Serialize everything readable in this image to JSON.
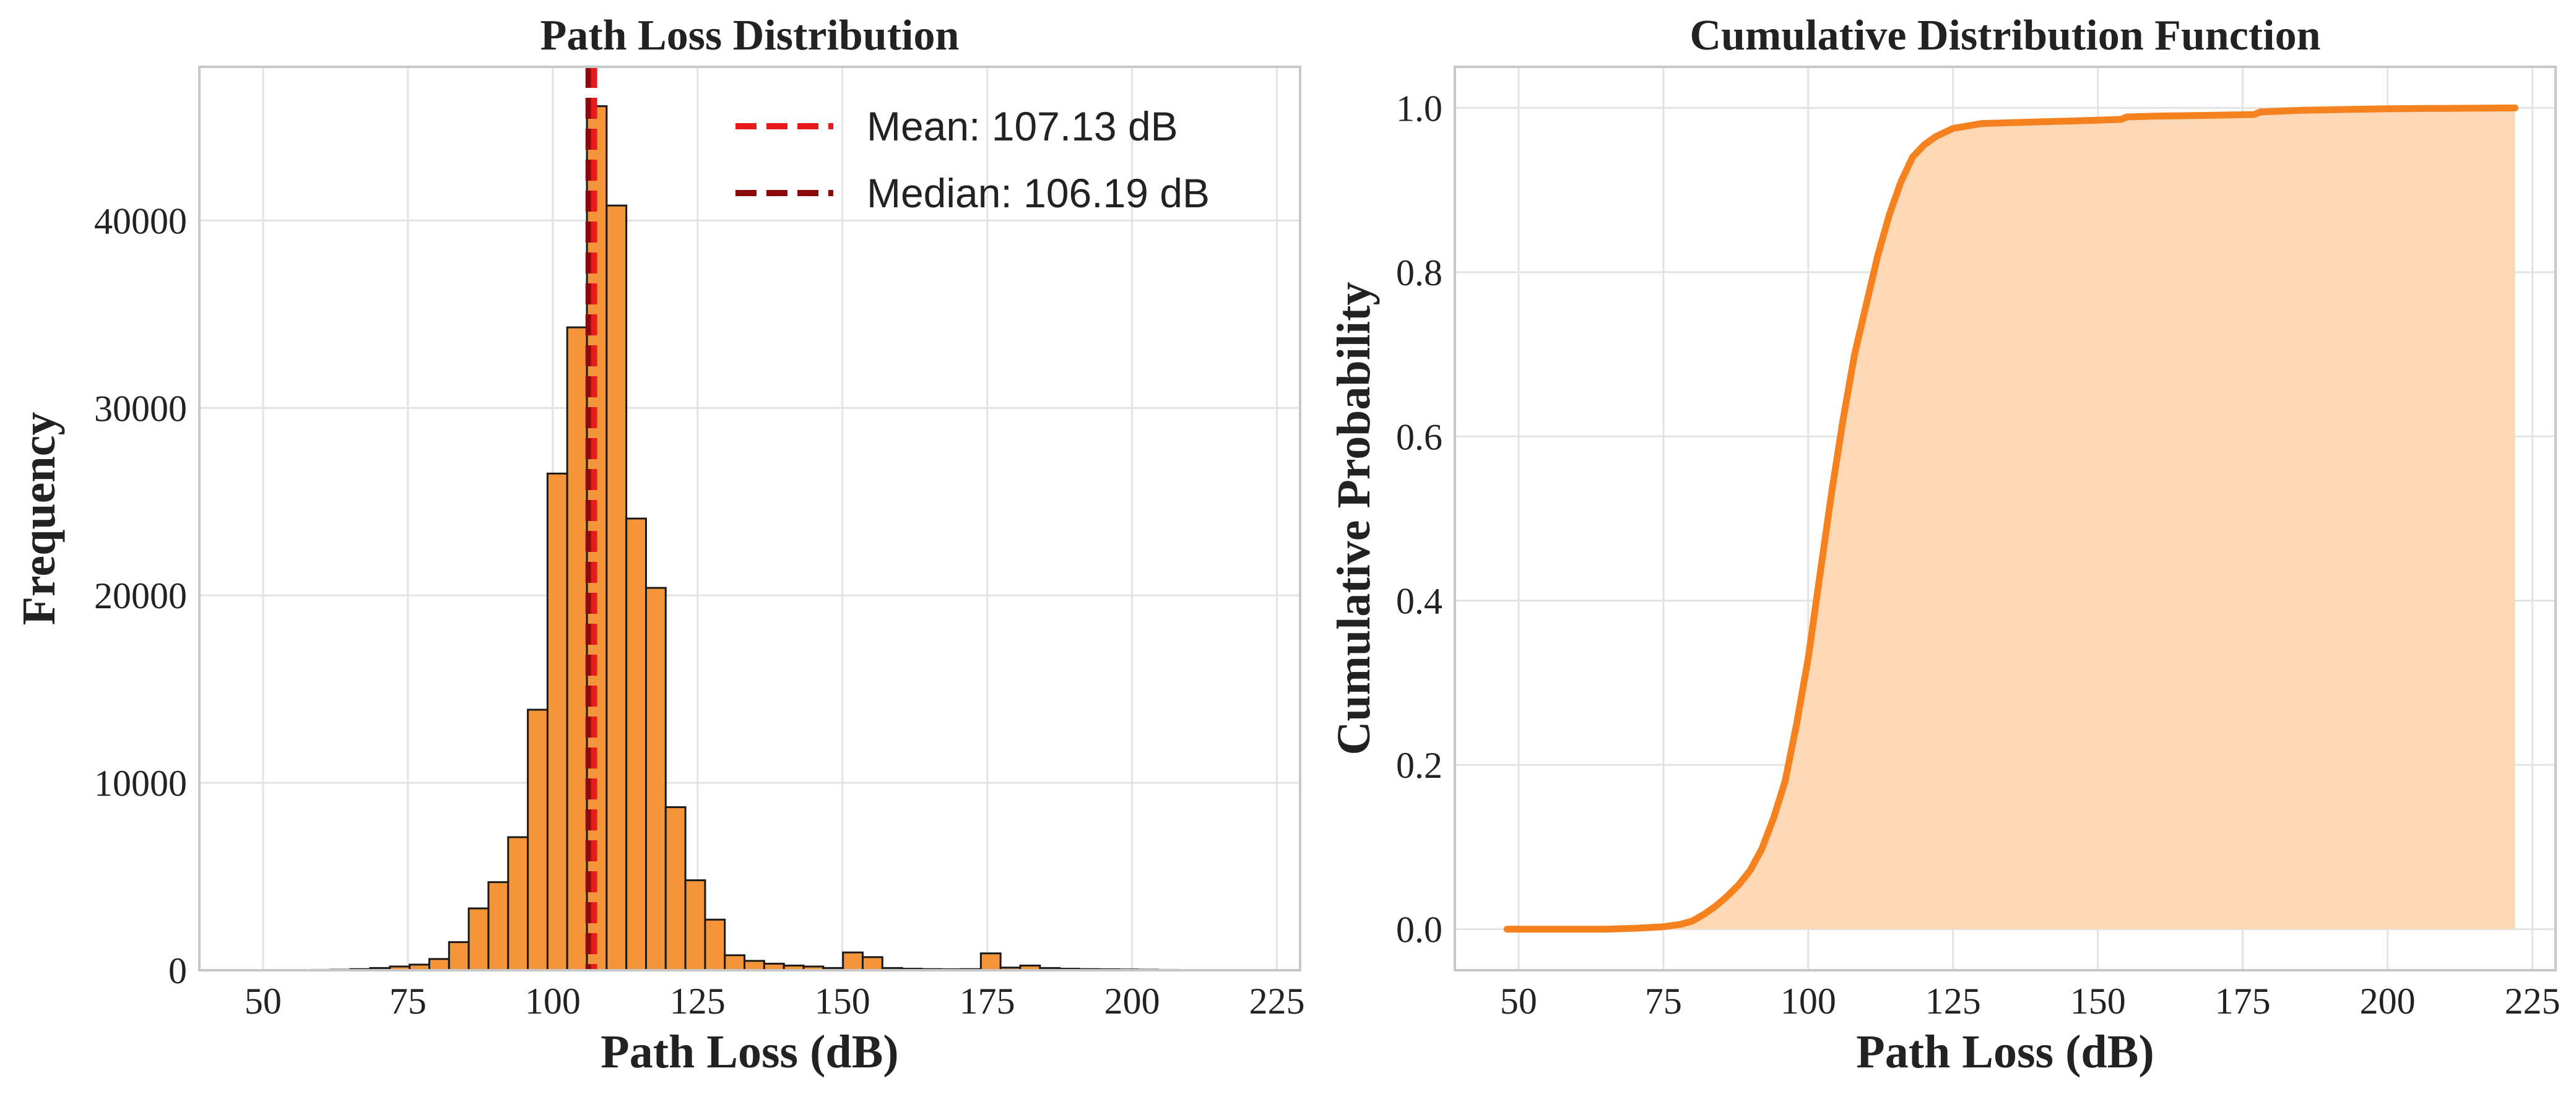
{
  "chart_data": [
    {
      "type": "bar",
      "title": "Path Loss Distribution",
      "xlabel": "Path Loss (dB)",
      "ylabel": "Frequency",
      "xlim": [
        39,
        229
      ],
      "ylim": [
        0,
        48200
      ],
      "xticks": [
        50,
        75,
        100,
        125,
        150,
        175,
        200,
        225
      ],
      "yticks": [
        0,
        10000,
        20000,
        30000,
        40000
      ],
      "bin_width": 3.4,
      "bin_start": 51.5,
      "values": [
        10,
        15,
        20,
        30,
        60,
        120,
        200,
        300,
        600,
        1500,
        3300,
        4700,
        7100,
        13900,
        26500,
        34300,
        46100,
        40800,
        24100,
        20400,
        8700,
        4800,
        2700,
        800,
        500,
        350,
        250,
        200,
        120,
        950,
        700,
        120,
        80,
        60,
        50,
        60,
        900,
        140,
        250,
        120,
        80,
        60,
        50,
        40,
        30,
        20,
        15,
        10,
        10,
        10
      ],
      "bar_color": "#f5953a",
      "edge_color": "#1a1a1a",
      "grid": true,
      "vlines": [
        {
          "label": "Mean: 107.13 dB",
          "x": 107.13,
          "color": "#e8191a"
        },
        {
          "label": "Median: 106.19 dB",
          "x": 106.19,
          "color": "#8b0a0a"
        }
      ],
      "legend_position": "top-right"
    },
    {
      "type": "area",
      "title": "Cumulative Distribution Function",
      "xlabel": "Path Loss (dB)",
      "ylabel": "Cumulative Probability",
      "xlim": [
        39,
        229
      ],
      "ylim": [
        -0.05,
        1.05
      ],
      "xticks": [
        50,
        75,
        100,
        125,
        150,
        175,
        200,
        225
      ],
      "yticks": [
        0.0,
        0.2,
        0.4,
        0.6,
        0.8,
        1.0
      ],
      "ytick_labels": [
        "0.0",
        "0.2",
        "0.4",
        "0.6",
        "0.8",
        "1.0"
      ],
      "line_color": "#f5821f",
      "fill_color": "#fdd8b6",
      "grid": true,
      "x": [
        48,
        55,
        60,
        65,
        70,
        75,
        78,
        80,
        82,
        84,
        86,
        88,
        90,
        92,
        94,
        96,
        98,
        100,
        102,
        104,
        106,
        108,
        110,
        112,
        114,
        116,
        118,
        120,
        122,
        125,
        130,
        140,
        150,
        154,
        155,
        160,
        170,
        177,
        178,
        185,
        200,
        222
      ],
      "y": [
        0.0,
        0.0,
        0.0,
        0.0,
        0.001,
        0.003,
        0.006,
        0.01,
        0.018,
        0.028,
        0.04,
        0.054,
        0.072,
        0.098,
        0.135,
        0.18,
        0.25,
        0.33,
        0.43,
        0.53,
        0.62,
        0.7,
        0.76,
        0.82,
        0.87,
        0.91,
        0.94,
        0.955,
        0.965,
        0.975,
        0.981,
        0.983,
        0.985,
        0.986,
        0.989,
        0.99,
        0.991,
        0.992,
        0.995,
        0.997,
        0.999,
        1.0
      ]
    }
  ]
}
